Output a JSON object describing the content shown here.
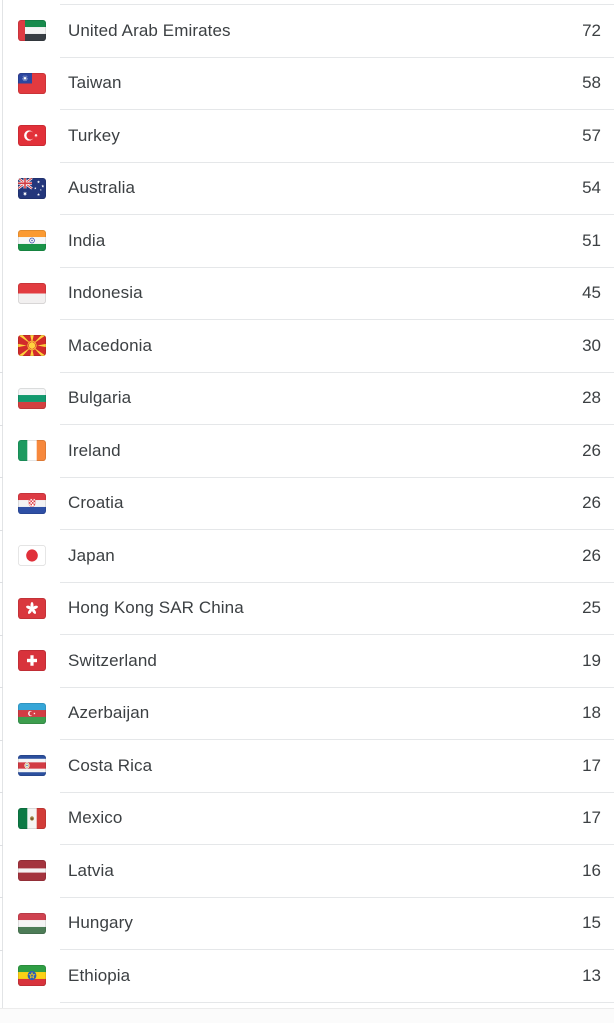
{
  "colors": {
    "row_text": "#3c4043",
    "divider": "#e5e7e9",
    "panel_border": "#e2e4e6"
  },
  "list": {
    "rows": [
      {
        "country": "United Arab Emirates",
        "value": "72",
        "flag": "ae"
      },
      {
        "country": "Taiwan",
        "value": "58",
        "flag": "tw"
      },
      {
        "country": "Turkey",
        "value": "57",
        "flag": "tr"
      },
      {
        "country": "Australia",
        "value": "54",
        "flag": "au"
      },
      {
        "country": "India",
        "value": "51",
        "flag": "in"
      },
      {
        "country": "Indonesia",
        "value": "45",
        "flag": "id"
      },
      {
        "country": "Macedonia",
        "value": "30",
        "flag": "mk"
      },
      {
        "country": "Bulgaria",
        "value": "28",
        "flag": "bg"
      },
      {
        "country": "Ireland",
        "value": "26",
        "flag": "ie"
      },
      {
        "country": "Croatia",
        "value": "26",
        "flag": "hr"
      },
      {
        "country": "Japan",
        "value": "26",
        "flag": "jp"
      },
      {
        "country": "Hong Kong SAR China",
        "value": "25",
        "flag": "hk"
      },
      {
        "country": "Switzerland",
        "value": "19",
        "flag": "ch"
      },
      {
        "country": "Azerbaijan",
        "value": "18",
        "flag": "az"
      },
      {
        "country": "Costa Rica",
        "value": "17",
        "flag": "cr"
      },
      {
        "country": "Mexico",
        "value": "17",
        "flag": "mx"
      },
      {
        "country": "Latvia",
        "value": "16",
        "flag": "lv"
      },
      {
        "country": "Hungary",
        "value": "15",
        "flag": "hu"
      },
      {
        "country": "Ethiopia",
        "value": "13",
        "flag": "et"
      }
    ]
  }
}
